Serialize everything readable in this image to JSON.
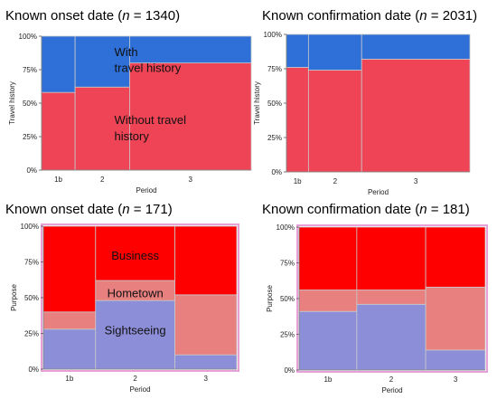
{
  "chart_data": [
    {
      "type": "mosaic",
      "title_prefix": "Known onset date (",
      "title_n": "n",
      "title_suffix": " = 1340)",
      "xlabel": "Period",
      "ylabel": "Travel history",
      "ylim": [
        0,
        100
      ],
      "yticks": [
        "0%",
        "25%",
        "50%",
        "75%",
        "100%"
      ],
      "categories": [
        "1b",
        "2",
        "3"
      ],
      "widths": [
        0.16,
        0.26,
        0.58
      ],
      "series": [
        {
          "name": "Without travel history",
          "color": "#ee4455",
          "values": [
            58,
            62,
            80
          ]
        },
        {
          "name": "With travel history",
          "color": "#2e6fd8",
          "values": [
            42,
            38,
            20
          ]
        }
      ],
      "annotations": [
        {
          "text": "With",
          "x": 1.72,
          "y": 88
        },
        {
          "text": "travel history",
          "x": 1.72,
          "y": 76
        },
        {
          "text": "Without travel",
          "x": 1.72,
          "y": 37
        },
        {
          "text": "history",
          "x": 1.72,
          "y": 25
        }
      ]
    },
    {
      "type": "mosaic",
      "title_prefix": "Known confirmation date (",
      "title_n": "n",
      "title_suffix": " = 2031)",
      "xlabel": "Period",
      "ylabel": "Travel history",
      "ylim": [
        0,
        100
      ],
      "yticks": [
        "0%",
        "25%",
        "50%",
        "75%",
        "100%"
      ],
      "categories": [
        "1b",
        "2",
        "3"
      ],
      "widths": [
        0.12,
        0.29,
        0.59
      ],
      "series": [
        {
          "name": "Without travel history",
          "color": "#ee4455",
          "values": [
            76,
            74,
            82
          ]
        },
        {
          "name": "With travel history",
          "color": "#2e6fd8",
          "values": [
            24,
            26,
            18
          ]
        }
      ],
      "annotations": []
    },
    {
      "type": "mosaic",
      "title_prefix": "Known onset date (",
      "title_n": "n",
      "title_suffix": " = 171)",
      "xlabel": "Period",
      "ylabel": "Purpose",
      "ylim": [
        0,
        100
      ],
      "yticks": [
        "0%",
        "25%",
        "50%",
        "75%",
        "100%"
      ],
      "categories": [
        "1b",
        "2",
        "3"
      ],
      "widths": [
        0.27,
        0.41,
        0.32
      ],
      "series": [
        {
          "name": "Sightseeing",
          "color": "#8c8ed8",
          "values": [
            28,
            48,
            10
          ]
        },
        {
          "name": "Hometown",
          "color": "#e88080",
          "values": [
            12,
            14,
            42
          ]
        },
        {
          "name": "Business",
          "color": "#ff0000",
          "values": [
            60,
            38,
            48
          ]
        }
      ],
      "annotations": [
        {
          "text": "Business",
          "x": 1.0,
          "y": 79
        },
        {
          "text": "Hometown",
          "x": 1.0,
          "y": 53
        },
        {
          "text": "Sightseeing",
          "x": 1.0,
          "y": 27
        }
      ]
    },
    {
      "type": "mosaic",
      "title_prefix": "Known confirmation date (",
      "title_n": "n",
      "title_suffix": " = 181)",
      "xlabel": "Period",
      "ylabel": "Purpose",
      "ylim": [
        0,
        100
      ],
      "yticks": [
        "0%",
        "25%",
        "50%",
        "75%",
        "100%"
      ],
      "categories": [
        "1b",
        "2",
        "3"
      ],
      "widths": [
        0.31,
        0.37,
        0.32
      ],
      "series": [
        {
          "name": "Sightseeing",
          "color": "#8c8ed8",
          "values": [
            41,
            46,
            14
          ]
        },
        {
          "name": "Hometown",
          "color": "#e88080",
          "values": [
            15,
            10,
            44
          ]
        },
        {
          "name": "Business",
          "color": "#ff0000",
          "values": [
            44,
            44,
            42
          ]
        }
      ],
      "annotations": []
    }
  ]
}
